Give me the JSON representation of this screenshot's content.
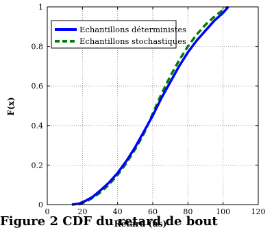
{
  "caption": "Figure 2 CDF du retard de bout",
  "chart_data": {
    "type": "line",
    "xlabel": "Retard (us)",
    "ylabel": "F(x)",
    "xlim": [
      0,
      120
    ],
    "ylim": [
      0,
      1
    ],
    "xticks": [
      "0",
      "20",
      "40",
      "60",
      "80",
      "100",
      "120"
    ],
    "yticks": [
      "0",
      "0.2",
      "0.4",
      "0.6",
      "0.8",
      "1"
    ],
    "grid": true,
    "legend_position": "top-left",
    "series": [
      {
        "name": "Echantillons déterministes",
        "color": "#0000ff",
        "style": "solid",
        "x": [
          14,
          18,
          22,
          26,
          30,
          35,
          40,
          45,
          50,
          55,
          60,
          65,
          70,
          75,
          80,
          85,
          90,
          95,
          100,
          103
        ],
        "y": [
          0.0,
          0.005,
          0.02,
          0.04,
          0.07,
          0.11,
          0.16,
          0.22,
          0.29,
          0.37,
          0.45,
          0.54,
          0.62,
          0.7,
          0.77,
          0.83,
          0.88,
          0.93,
          0.97,
          1.0
        ]
      },
      {
        "name": "Echantillons stochastiques",
        "color": "#008000",
        "style": "dashed",
        "x": [
          18,
          22,
          26,
          30,
          35,
          40,
          45,
          50,
          55,
          60,
          65,
          70,
          75,
          80,
          85,
          90,
          95,
          100,
          103
        ],
        "y": [
          0.0,
          0.015,
          0.035,
          0.06,
          0.1,
          0.15,
          0.21,
          0.28,
          0.36,
          0.46,
          0.56,
          0.65,
          0.73,
          0.8,
          0.86,
          0.91,
          0.95,
          0.985,
          1.0
        ]
      }
    ]
  }
}
